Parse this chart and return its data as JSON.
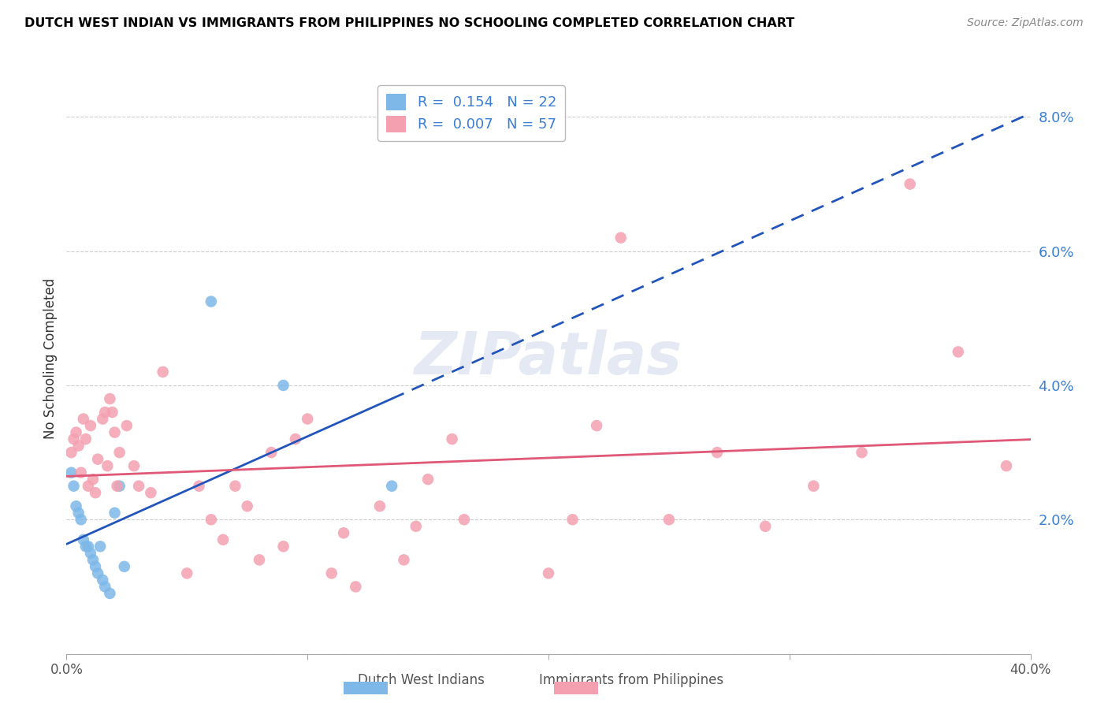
{
  "title": "DUTCH WEST INDIAN VS IMMIGRANTS FROM PHILIPPINES NO SCHOOLING COMPLETED CORRELATION CHART",
  "source": "Source: ZipAtlas.com",
  "ylabel": "No Schooling Completed",
  "ytick_labels": [
    "",
    "2.0%",
    "4.0%",
    "6.0%",
    "8.0%"
  ],
  "ytick_values": [
    0.0,
    0.02,
    0.04,
    0.06,
    0.08
  ],
  "xlim": [
    0.0,
    0.4
  ],
  "ylim": [
    0.0,
    0.088
  ],
  "legend_blue_r": "0.154",
  "legend_blue_n": "22",
  "legend_pink_r": "0.007",
  "legend_pink_n": "57",
  "legend_blue_label": "Dutch West Indians",
  "legend_pink_label": "Immigrants from Philippines",
  "blue_color": "#7db8e8",
  "pink_color": "#f4a0b0",
  "blue_line_color": "#2255bb",
  "pink_line_color": "#e05878",
  "blue_points_x": [
    0.002,
    0.003,
    0.004,
    0.005,
    0.006,
    0.007,
    0.008,
    0.009,
    0.01,
    0.011,
    0.012,
    0.013,
    0.014,
    0.015,
    0.016,
    0.018,
    0.02,
    0.022,
    0.024,
    0.06,
    0.09,
    0.135
  ],
  "blue_points_y": [
    0.027,
    0.025,
    0.022,
    0.021,
    0.02,
    0.017,
    0.016,
    0.016,
    0.015,
    0.014,
    0.013,
    0.012,
    0.016,
    0.011,
    0.01,
    0.009,
    0.021,
    0.025,
    0.013,
    0.0525,
    0.04,
    0.025
  ],
  "pink_points_x": [
    0.002,
    0.003,
    0.004,
    0.005,
    0.006,
    0.007,
    0.008,
    0.009,
    0.01,
    0.011,
    0.012,
    0.013,
    0.015,
    0.016,
    0.017,
    0.018,
    0.019,
    0.02,
    0.021,
    0.022,
    0.025,
    0.028,
    0.03,
    0.035,
    0.04,
    0.05,
    0.055,
    0.06,
    0.065,
    0.07,
    0.075,
    0.08,
    0.085,
    0.09,
    0.095,
    0.1,
    0.11,
    0.115,
    0.12,
    0.13,
    0.14,
    0.145,
    0.15,
    0.16,
    0.165,
    0.2,
    0.21,
    0.22,
    0.23,
    0.25,
    0.27,
    0.29,
    0.31,
    0.33,
    0.35,
    0.37,
    0.39
  ],
  "pink_points_y": [
    0.03,
    0.032,
    0.033,
    0.031,
    0.027,
    0.035,
    0.032,
    0.025,
    0.034,
    0.026,
    0.024,
    0.029,
    0.035,
    0.036,
    0.028,
    0.038,
    0.036,
    0.033,
    0.025,
    0.03,
    0.034,
    0.028,
    0.025,
    0.024,
    0.042,
    0.012,
    0.025,
    0.02,
    0.017,
    0.025,
    0.022,
    0.014,
    0.03,
    0.016,
    0.032,
    0.035,
    0.012,
    0.018,
    0.01,
    0.022,
    0.014,
    0.019,
    0.026,
    0.032,
    0.02,
    0.012,
    0.02,
    0.034,
    0.062,
    0.02,
    0.03,
    0.019,
    0.025,
    0.03,
    0.07,
    0.045,
    0.028
  ]
}
